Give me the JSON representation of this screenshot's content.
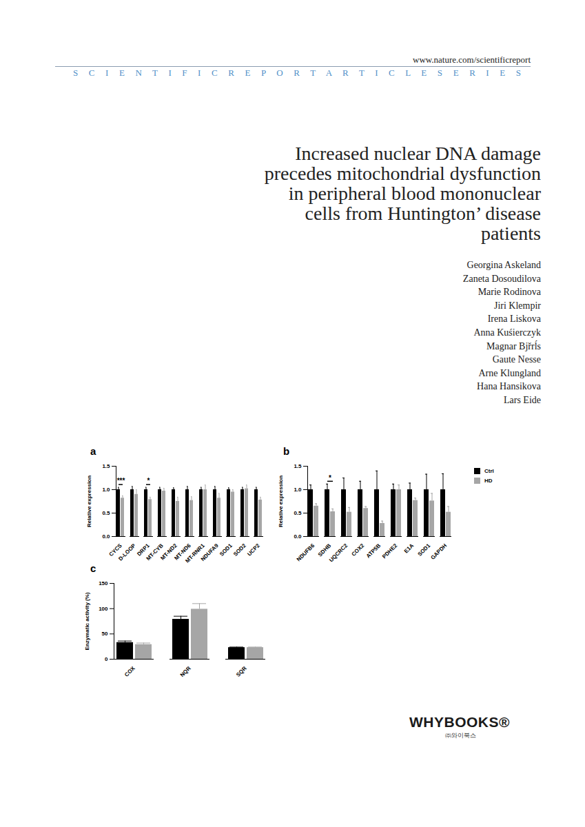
{
  "document": {
    "url": "www.nature.com/scientificreport",
    "series": "S C I E N T I F I C R E P O R T A R T I C L E S E R I E S",
    "title_lines": [
      "Increased nuclear DNA damage",
      "precedes mitochondrial dysfunction",
      "in peripheral blood mononuclear",
      "cells from Huntington’ disease",
      "patients"
    ],
    "authors": [
      "Georgina Askeland",
      "Zaneta Dosoudilova",
      "Marie Rodinova",
      "Jiri Klempir",
      "Irena Liskova",
      "Anna Kuśierczyk",
      "Magnar Bjřrĺs",
      "Gaute Nesse",
      "Arne Klungland",
      "Hana Hansikova",
      "Lars Eide"
    ],
    "publisher": "WHYBOOKS®",
    "publisher_sub": "㈜와이북스"
  },
  "chart_data": [
    {
      "type": "bar",
      "panel_label": "a",
      "y_label": "Relative expression",
      "categories": [
        "CYCS",
        "D-LOOP",
        "DRP1",
        "MT-CYB",
        "MT-ND2",
        "MT-ND6",
        "MT-RNR1",
        "NDUFA9",
        "SOD1",
        "SOD2",
        "UCP2"
      ],
      "series": [
        {
          "name": "Ctrl",
          "color": "#000000",
          "values": [
            1.0,
            1.0,
            1.0,
            1.0,
            1.0,
            1.0,
            1.0,
            1.0,
            1.0,
            1.0,
            1.0
          ],
          "errors": [
            0.05,
            0.07,
            0.05,
            0.05,
            0.04,
            0.07,
            0.05,
            0.07,
            0.04,
            0.05,
            0.05
          ]
        },
        {
          "name": "HD",
          "color": "#a6a6a6",
          "values": [
            0.82,
            0.9,
            0.79,
            0.97,
            0.75,
            0.77,
            1.0,
            0.82,
            0.95,
            1.02,
            0.78
          ],
          "errors": [
            0.05,
            0.1,
            0.05,
            0.06,
            0.09,
            0.08,
            0.1,
            0.1,
            0.05,
            0.08,
            0.06
          ]
        }
      ],
      "annotations": [
        {
          "category": "CYCS",
          "label": "***"
        },
        {
          "category": "DRP1",
          "label": "*"
        }
      ],
      "ylim": [
        0,
        1.5
      ],
      "yticks": [
        {
          "value": 0,
          "label": "0.0"
        },
        {
          "value": 0.5,
          "label": "0.5"
        },
        {
          "value": 1,
          "label": "1.0"
        },
        {
          "value": 1.5,
          "label": "1.5"
        }
      ]
    },
    {
      "type": "bar",
      "panel_label": "b",
      "y_label": "Relative expression",
      "categories": [
        "NDUFB6",
        "SDHB",
        "UQCRC2",
        "COX2",
        "ATP5B",
        "PDHE2",
        "E1A",
        "SOD1",
        "GAPDH"
      ],
      "series": [
        {
          "name": "Ctrl",
          "color": "#000000",
          "values": [
            1.0,
            1.0,
            1.0,
            1.0,
            1.0,
            1.0,
            1.0,
            1.0,
            1.0
          ],
          "errors": [
            0.1,
            0.12,
            0.25,
            0.18,
            0.4,
            0.12,
            0.14,
            0.33,
            0.34
          ]
        },
        {
          "name": "HD",
          "color": "#a6a6a6",
          "values": [
            0.65,
            0.53,
            0.52,
            0.6,
            0.28,
            1.0,
            0.77,
            0.76,
            0.52
          ],
          "errors": [
            0.05,
            0.06,
            0.1,
            0.04,
            0.05,
            0.1,
            0.05,
            0.16,
            0.12
          ]
        }
      ],
      "annotations": [
        {
          "category": "SDHB",
          "label": "*"
        }
      ],
      "legend": "right",
      "ylim": [
        0,
        1.5
      ],
      "yticks": [
        {
          "value": 0,
          "label": "0.0"
        },
        {
          "value": 0.5,
          "label": "0.5"
        },
        {
          "value": 1,
          "label": "1.0"
        },
        {
          "value": 1.5,
          "label": "1.5"
        }
      ]
    },
    {
      "type": "bar",
      "panel_label": "c",
      "y_label": "Enzymatic activity (%)",
      "categories": [
        "COX",
        "NQR",
        "SQR"
      ],
      "series": [
        {
          "name": "Ctrl",
          "color": "#000000",
          "values": [
            33,
            79,
            23
          ],
          "errors": [
            3,
            6,
            1
          ]
        },
        {
          "name": "HD",
          "color": "#a6a6a6",
          "values": [
            29,
            99,
            23
          ],
          "errors": [
            3,
            11,
            1
          ]
        }
      ],
      "annotations": [],
      "ylim": [
        0,
        150
      ],
      "yticks": [
        0,
        50,
        100,
        150
      ]
    }
  ]
}
